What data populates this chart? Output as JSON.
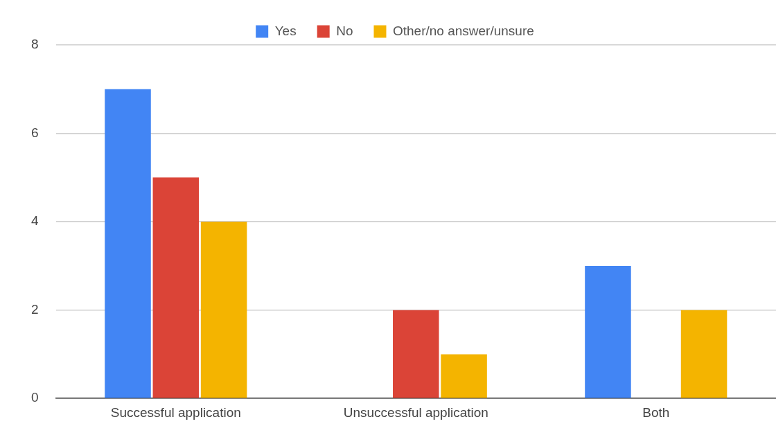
{
  "chart_data": {
    "type": "bar",
    "categories": [
      "Successful application",
      "Unsuccessful application",
      "Both"
    ],
    "series": [
      {
        "name": "Yes",
        "color": "#4285f4",
        "values": [
          7,
          0,
          3
        ]
      },
      {
        "name": "No",
        "color": "#db4437",
        "values": [
          5,
          2,
          0
        ]
      },
      {
        "name": "Other/no answer/unsure",
        "color": "#f4b400",
        "values": [
          4,
          1,
          2
        ]
      }
    ],
    "ylim": [
      0,
      8
    ],
    "yticks": [
      0,
      2,
      4,
      6,
      8
    ],
    "grid": "y",
    "legend": "top"
  }
}
